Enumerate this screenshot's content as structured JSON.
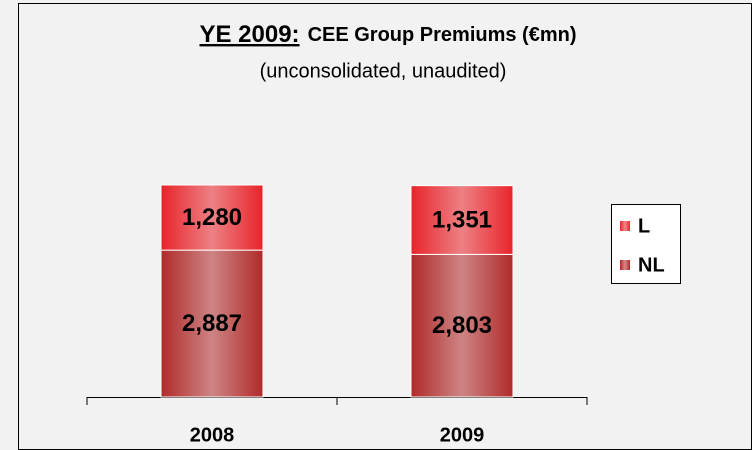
{
  "chart_data": {
    "type": "stacked_bar",
    "title_prefix": "YE 2009:",
    "title": "CEE Group Premiums (€mn)",
    "subtitle": "(unconsolidated, unaudited)",
    "categories": [
      "2008",
      "2009"
    ],
    "series": [
      {
        "name": "NL",
        "color": "#b02a2a",
        "values": [
          2887,
          2803
        ],
        "value_labels": [
          "2,887",
          "2,803"
        ]
      },
      {
        "name": "L",
        "color": "#e8242a",
        "values": [
          1280,
          1351
        ],
        "value_labels": [
          "1,280",
          "1,351"
        ]
      }
    ],
    "legend": "right"
  }
}
